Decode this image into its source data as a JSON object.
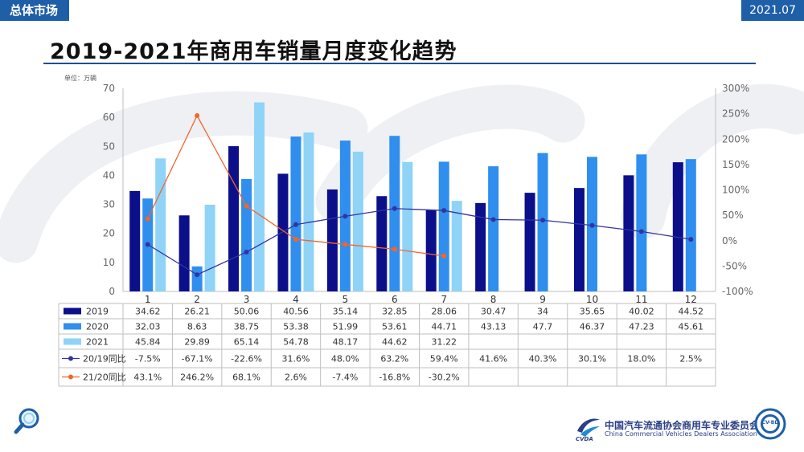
{
  "header": {
    "section": "总体市场",
    "date": "2021.07"
  },
  "chart_title": "2019-2021年商用车销量月度变化趋势",
  "unit_label": "单位：万辆",
  "footer": {
    "org_cn": "中国汽车流通协会商用车专业委员会",
    "org_en": "China Commercial Vehicles Dealers Association",
    "logo_mark": "CVDA",
    "seal_text": "CV-BD"
  },
  "colors": {
    "s2019": "#0b0f8a",
    "s2020": "#2f8eee",
    "s2021": "#8fd3f7",
    "yoy1920": "#3434a0",
    "yoy2021": "#f4652a",
    "brand": "#1f5fa8"
  },
  "chart_data": {
    "type": "bar",
    "categories": [
      "1",
      "2",
      "3",
      "4",
      "5",
      "6",
      "7",
      "8",
      "9",
      "10",
      "11",
      "12"
    ],
    "series": [
      {
        "name": "2019",
        "values": [
          34.62,
          26.21,
          50.06,
          40.56,
          35.14,
          32.85,
          28.06,
          30.47,
          34,
          35.65,
          40.02,
          44.52
        ]
      },
      {
        "name": "2020",
        "values": [
          32.03,
          8.63,
          38.75,
          53.38,
          51.99,
          53.61,
          44.71,
          43.13,
          47.7,
          46.37,
          47.23,
          45.61
        ]
      },
      {
        "name": "2021",
        "values": [
          45.84,
          29.89,
          65.14,
          54.78,
          48.17,
          44.62,
          31.22,
          null,
          null,
          null,
          null,
          null
        ]
      }
    ],
    "line_series": [
      {
        "name": "20/19同比",
        "axis": "right",
        "values": [
          -7.5,
          -67.1,
          -22.6,
          31.6,
          48.0,
          63.2,
          59.4,
          41.6,
          40.3,
          30.1,
          18.0,
          2.5
        ],
        "labels": [
          "-7.5%",
          "-67.1%",
          "-22.6%",
          "31.6%",
          "48.0%",
          "63.2%",
          "59.4%",
          "41.6%",
          "40.3%",
          "30.1%",
          "18.0%",
          "2.5%"
        ]
      },
      {
        "name": "21/20同比",
        "axis": "right",
        "values": [
          43.1,
          246.2,
          68.1,
          2.6,
          -7.4,
          -16.8,
          -30.2,
          null,
          null,
          null,
          null,
          null
        ],
        "labels": [
          "43.1%",
          "246.2%",
          "68.1%",
          "2.6%",
          "-7.4%",
          "-16.8%",
          "-30.2%",
          "",
          "",
          "",
          "",
          ""
        ]
      }
    ],
    "table_labels": [
      [
        "34.62",
        "26.21",
        "50.06",
        "40.56",
        "35.14",
        "32.85",
        "28.06",
        "30.47",
        "34",
        "35.65",
        "40.02",
        "44.52"
      ],
      [
        "32.03",
        "8.63",
        "38.75",
        "53.38",
        "51.99",
        "53.61",
        "44.71",
        "43.13",
        "47.7",
        "46.37",
        "47.23",
        "45.61"
      ],
      [
        "45.84",
        "29.89",
        "65.14",
        "54.78",
        "48.17",
        "44.62",
        "31.22",
        "",
        "",
        "",
        "",
        ""
      ]
    ],
    "ylim_left": [
      0,
      70
    ],
    "yticks_left": [
      "0",
      "10",
      "20",
      "30",
      "40",
      "50",
      "60",
      "70"
    ],
    "ylim_right": [
      -100,
      300
    ],
    "yticks_right": [
      "-100%",
      "-50%",
      "0%",
      "50%",
      "100%",
      "150%",
      "200%",
      "250%",
      "300%"
    ],
    "grid": false,
    "legend": "data-table"
  }
}
